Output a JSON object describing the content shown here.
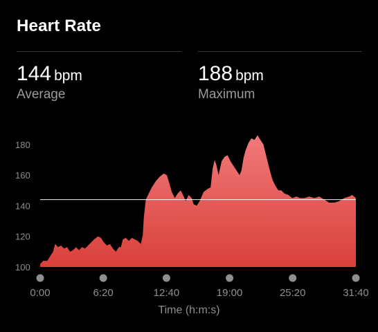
{
  "header": {
    "title": "Heart Rate"
  },
  "stats": [
    {
      "value": "144",
      "unit": "bpm",
      "label": "Average"
    },
    {
      "value": "188",
      "unit": "bpm",
      "label": "Maximum"
    }
  ],
  "colors": {
    "background": "#000000",
    "area_top": "#f07a7a",
    "area_bottom": "#d9403a",
    "average_line": "#ffffff",
    "tick_text": "#8e8e93",
    "tick_dot": "#8e8e93"
  },
  "chart_data": {
    "type": "area",
    "title": "",
    "xlabel": "Time (h:m:s)",
    "ylabel": "",
    "x_unit": "minutes",
    "xlim": [
      0,
      31.67
    ],
    "ylim": [
      100,
      184
    ],
    "y_ticks": [
      100,
      120,
      140,
      160,
      180
    ],
    "x_ticks": [
      {
        "value": 0,
        "label": "0:00"
      },
      {
        "value": 6.33,
        "label": "6:20"
      },
      {
        "value": 12.67,
        "label": "12:40"
      },
      {
        "value": 19,
        "label": "19:00"
      },
      {
        "value": 25.33,
        "label": "25:20"
      },
      {
        "value": 31.67,
        "label": "31:40"
      }
    ],
    "average": 144,
    "grid": false,
    "series": [
      {
        "values": [
          [
            0,
            102
          ],
          [
            0.3,
            104
          ],
          [
            0.7,
            104
          ],
          [
            1.0,
            107
          ],
          [
            1.3,
            110
          ],
          [
            1.5,
            115
          ],
          [
            1.8,
            113
          ],
          [
            2.1,
            114
          ],
          [
            2.4,
            112
          ],
          [
            2.7,
            113
          ],
          [
            3.0,
            110
          ],
          [
            3.3,
            111
          ],
          [
            3.6,
            113
          ],
          [
            3.9,
            111
          ],
          [
            4.2,
            113
          ],
          [
            4.5,
            112
          ],
          [
            4.8,
            114
          ],
          [
            5.1,
            116
          ],
          [
            5.4,
            118
          ],
          [
            5.8,
            120
          ],
          [
            6.1,
            119
          ],
          [
            6.4,
            116
          ],
          [
            6.7,
            114
          ],
          [
            7.0,
            115
          ],
          [
            7.3,
            112
          ],
          [
            7.6,
            110
          ],
          [
            7.9,
            113
          ],
          [
            8.1,
            113
          ],
          [
            8.3,
            118
          ],
          [
            8.6,
            119
          ],
          [
            8.9,
            117
          ],
          [
            9.2,
            119
          ],
          [
            9.5,
            118
          ],
          [
            9.8,
            117
          ],
          [
            10.1,
            115
          ],
          [
            10.3,
            121
          ],
          [
            10.4,
            132
          ],
          [
            10.6,
            144
          ],
          [
            10.9,
            148
          ],
          [
            11.2,
            152
          ],
          [
            11.6,
            156
          ],
          [
            12.0,
            159
          ],
          [
            12.4,
            161
          ],
          [
            12.7,
            160
          ],
          [
            12.9,
            156
          ],
          [
            13.2,
            149
          ],
          [
            13.5,
            145
          ],
          [
            13.8,
            148
          ],
          [
            14.1,
            150
          ],
          [
            14.4,
            146
          ],
          [
            14.6,
            143
          ],
          [
            14.9,
            147
          ],
          [
            15.2,
            145
          ],
          [
            15.4,
            141
          ],
          [
            15.7,
            140
          ],
          [
            16.0,
            143
          ],
          [
            16.4,
            149
          ],
          [
            16.8,
            151
          ],
          [
            17.1,
            152
          ],
          [
            17.3,
            164
          ],
          [
            17.5,
            170
          ],
          [
            17.7,
            166
          ],
          [
            17.9,
            160
          ],
          [
            18.2,
            169
          ],
          [
            18.5,
            172
          ],
          [
            18.8,
            173
          ],
          [
            19.1,
            169
          ],
          [
            19.4,
            166
          ],
          [
            19.7,
            163
          ],
          [
            20.0,
            160
          ],
          [
            20.2,
            163
          ],
          [
            20.4,
            171
          ],
          [
            20.6,
            176
          ],
          [
            20.9,
            181
          ],
          [
            21.2,
            184
          ],
          [
            21.5,
            183
          ],
          [
            21.8,
            186
          ],
          [
            22.1,
            183
          ],
          [
            22.4,
            180
          ],
          [
            22.7,
            172
          ],
          [
            23.0,
            164
          ],
          [
            23.3,
            157
          ],
          [
            23.6,
            153
          ],
          [
            23.9,
            150
          ],
          [
            24.2,
            150
          ],
          [
            24.5,
            148
          ],
          [
            24.9,
            147
          ],
          [
            25.3,
            145
          ],
          [
            25.7,
            146
          ],
          [
            26.1,
            145
          ],
          [
            26.5,
            145
          ],
          [
            27.0,
            146
          ],
          [
            27.5,
            145
          ],
          [
            28.0,
            146
          ],
          [
            28.5,
            144
          ],
          [
            29.0,
            142
          ],
          [
            29.5,
            142
          ],
          [
            30.0,
            143
          ],
          [
            30.5,
            145
          ],
          [
            31.0,
            146
          ],
          [
            31.3,
            147
          ],
          [
            31.67,
            145
          ]
        ]
      }
    ]
  }
}
